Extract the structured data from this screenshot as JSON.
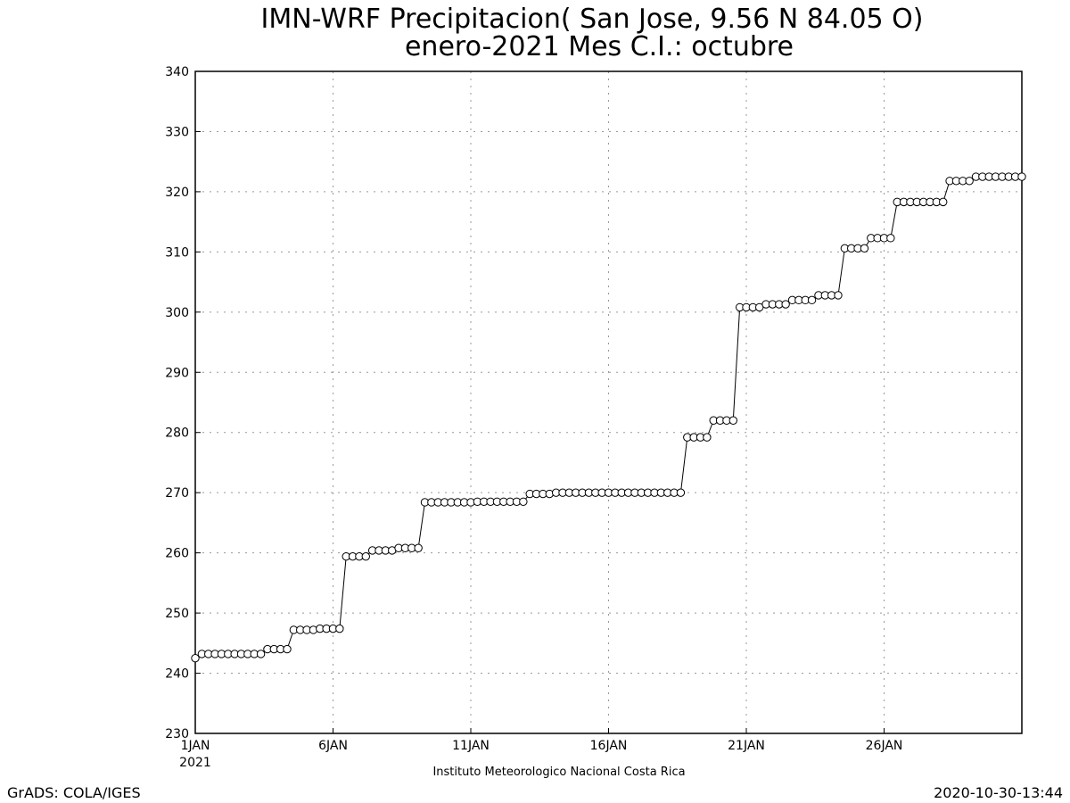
{
  "chart_data": {
    "type": "line",
    "title": "IMN-WRF  Precipitacion( San Jose, 9.56  N 84.05  O)",
    "subtitle": "enero-2021 Mes C.I.: octubre",
    "xlabel": "",
    "ylabel": "",
    "ylim": [
      230,
      340
    ],
    "yticks": [
      230,
      240,
      250,
      260,
      270,
      280,
      290,
      300,
      310,
      320,
      330,
      340
    ],
    "xlim": [
      1,
      31
    ],
    "xticks": [
      {
        "day": 1,
        "label": "1JAN"
      },
      {
        "day": 6,
        "label": "6JAN"
      },
      {
        "day": 11,
        "label": "11JAN"
      },
      {
        "day": 16,
        "label": "16JAN"
      },
      {
        "day": 21,
        "label": "21JAN"
      },
      {
        "day": 26,
        "label": "26JAN"
      }
    ],
    "year_label": "2021",
    "grid": true,
    "marker": "open-circle",
    "series": [
      {
        "values": [
          242.5,
          243.2,
          243.2,
          243.2,
          243.2,
          243.2,
          243.2,
          243.2,
          243.2,
          243.2,
          243.2,
          244.0,
          244.0,
          244.0,
          244.0,
          247.2,
          247.2,
          247.2,
          247.2,
          247.4,
          247.4,
          247.4,
          247.4,
          259.4,
          259.4,
          259.4,
          259.4,
          260.4,
          260.4,
          260.4,
          260.4,
          260.8,
          260.8,
          260.8,
          260.8,
          268.4,
          268.4,
          268.4,
          268.4,
          268.4,
          268.4,
          268.4,
          268.4,
          268.5,
          268.5,
          268.5,
          268.5,
          268.5,
          268.5,
          268.5,
          268.5,
          269.8,
          269.8,
          269.8,
          269.8,
          270.0,
          270.0,
          270.0,
          270.0,
          270.0,
          270.0,
          270.0,
          270.0,
          270.0,
          270.0,
          270.0,
          270.0,
          270.0,
          270.0,
          270.0,
          270.0,
          270.0,
          270.0,
          270.0,
          270.0,
          279.2,
          279.2,
          279.2,
          279.2,
          282.0,
          282.0,
          282.0,
          282.0,
          300.8,
          300.8,
          300.8,
          300.8,
          301.3,
          301.3,
          301.3,
          301.3,
          302.0,
          302.0,
          302.0,
          302.0,
          302.8,
          302.8,
          302.8,
          302.8,
          310.6,
          310.6,
          310.6,
          310.6,
          312.3,
          312.3,
          312.3,
          312.3,
          318.3,
          318.3,
          318.3,
          318.3,
          318.3,
          318.3,
          318.3,
          318.3,
          321.8,
          321.8,
          321.8,
          321.8,
          322.5,
          322.5,
          322.5,
          322.5,
          322.5,
          322.5,
          322.5,
          322.5
        ]
      }
    ]
  },
  "footer": {
    "institution": "Instituto Meteorologico Nacional Costa Rica",
    "credit": "GrADS: COLA/IGES",
    "timestamp": "2020-10-30-13:44"
  }
}
